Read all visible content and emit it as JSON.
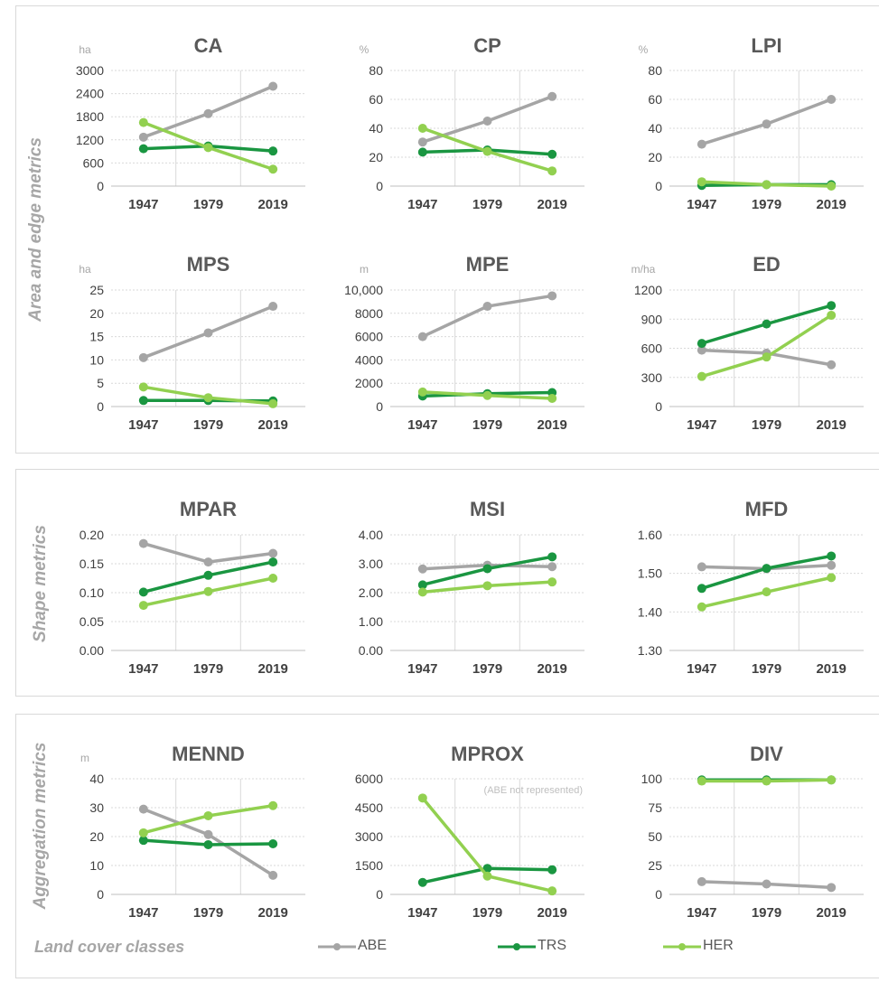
{
  "panels": [
    {
      "label": "Area and edge metrics"
    },
    {
      "label": "Shape metrics"
    },
    {
      "label": "Aggregation metrics"
    }
  ],
  "legend": {
    "title": "Land cover classes",
    "items": [
      {
        "name": "ABE",
        "color": "#a5a5a5"
      },
      {
        "name": "TRS",
        "color": "#1a9641"
      },
      {
        "name": "HER",
        "color": "#92d050"
      }
    ]
  },
  "chart_data": [
    {
      "type": "line",
      "title": "CA",
      "unit": "ha",
      "categories": [
        "1947",
        "1979",
        "2019"
      ],
      "ylim": [
        0,
        3000
      ],
      "yticks": [
        "0",
        "600",
        "1200",
        "1800",
        "2400",
        "3000"
      ],
      "series": [
        {
          "name": "ABE",
          "values": [
            1270,
            1880,
            2590
          ]
        },
        {
          "name": "TRS",
          "values": [
            970,
            1040,
            910
          ]
        },
        {
          "name": "HER",
          "values": [
            1650,
            1000,
            440
          ]
        }
      ]
    },
    {
      "type": "line",
      "title": "CP",
      "unit": "%",
      "categories": [
        "1947",
        "1979",
        "2019"
      ],
      "ylim": [
        0,
        80
      ],
      "yticks": [
        "0",
        "20",
        "40",
        "60",
        "80"
      ],
      "series": [
        {
          "name": "ABE",
          "values": [
            30.5,
            45,
            62
          ]
        },
        {
          "name": "TRS",
          "values": [
            23.5,
            25,
            22
          ]
        },
        {
          "name": "HER",
          "values": [
            40,
            24,
            10.5
          ]
        }
      ]
    },
    {
      "type": "line",
      "title": "LPI",
      "unit": "%",
      "categories": [
        "1947",
        "1979",
        "2019"
      ],
      "ylim": [
        0,
        80
      ],
      "yticks": [
        "0",
        "20",
        "40",
        "60",
        "80"
      ],
      "series": [
        {
          "name": "ABE",
          "values": [
            29,
            43,
            60
          ]
        },
        {
          "name": "TRS",
          "values": [
            0.5,
            1,
            1
          ]
        },
        {
          "name": "HER",
          "values": [
            3,
            1,
            0
          ]
        }
      ]
    },
    {
      "type": "line",
      "title": "MPS",
      "unit": "ha",
      "categories": [
        "1947",
        "1979",
        "2019"
      ],
      "ylim": [
        0,
        25
      ],
      "yticks": [
        "0",
        "5",
        "10",
        "15",
        "20",
        "25"
      ],
      "series": [
        {
          "name": "ABE",
          "values": [
            10.5,
            15.8,
            21.5
          ]
        },
        {
          "name": "TRS",
          "values": [
            1.3,
            1.3,
            1.2
          ]
        },
        {
          "name": "HER",
          "values": [
            4.2,
            1.9,
            0.6
          ]
        }
      ]
    },
    {
      "type": "line",
      "title": "MPE",
      "unit": "m",
      "categories": [
        "1947",
        "1979",
        "2019"
      ],
      "ylim": [
        0,
        10000
      ],
      "yticks": [
        "0",
        "2000",
        "4000",
        "6000",
        "8000",
        "10,000"
      ],
      "series": [
        {
          "name": "ABE",
          "values": [
            6000,
            8600,
            9500
          ]
        },
        {
          "name": "TRS",
          "values": [
            900,
            1100,
            1200
          ]
        },
        {
          "name": "HER",
          "values": [
            1250,
            950,
            700
          ]
        }
      ]
    },
    {
      "type": "line",
      "title": "ED",
      "unit": "m/ha",
      "categories": [
        "1947",
        "1979",
        "2019"
      ],
      "ylim": [
        0,
        1200
      ],
      "yticks": [
        "0",
        "300",
        "600",
        "900",
        "1200"
      ],
      "series": [
        {
          "name": "ABE",
          "values": [
            580,
            550,
            430
          ]
        },
        {
          "name": "TRS",
          "values": [
            650,
            850,
            1040
          ]
        },
        {
          "name": "HER",
          "values": [
            310,
            510,
            940
          ]
        }
      ]
    },
    {
      "type": "line",
      "title": "MPAR",
      "unit": "",
      "categories": [
        "1947",
        "1979",
        "2019"
      ],
      "ylim": [
        0,
        0.2
      ],
      "yticks": [
        "0.00",
        "0.05",
        "0.10",
        "0.15",
        "0.20"
      ],
      "series": [
        {
          "name": "ABE",
          "values": [
            0.185,
            0.153,
            0.168
          ]
        },
        {
          "name": "TRS",
          "values": [
            0.101,
            0.13,
            0.153
          ]
        },
        {
          "name": "HER",
          "values": [
            0.078,
            0.102,
            0.125
          ]
        }
      ]
    },
    {
      "type": "line",
      "title": "MSI",
      "unit": "",
      "categories": [
        "1947",
        "1979",
        "2019"
      ],
      "ylim": [
        0,
        4
      ],
      "yticks": [
        "0.00",
        "1.00",
        "2.00",
        "3.00",
        "4.00"
      ],
      "series": [
        {
          "name": "ABE",
          "values": [
            2.82,
            2.95,
            2.9
          ]
        },
        {
          "name": "TRS",
          "values": [
            2.27,
            2.83,
            3.24
          ]
        },
        {
          "name": "HER",
          "values": [
            2.02,
            2.24,
            2.37
          ]
        }
      ]
    },
    {
      "type": "line",
      "title": "MFD",
      "unit": "",
      "categories": [
        "1947",
        "1979",
        "2019"
      ],
      "ylim": [
        1.3,
        1.6
      ],
      "yticks": [
        "1.30",
        "1.40",
        "1.50",
        "1.60"
      ],
      "series": [
        {
          "name": "ABE",
          "values": [
            1.517,
            1.512,
            1.521
          ]
        },
        {
          "name": "TRS",
          "values": [
            1.461,
            1.513,
            1.545
          ]
        },
        {
          "name": "HER",
          "values": [
            1.413,
            1.452,
            1.489
          ]
        }
      ]
    },
    {
      "type": "line",
      "title": "MENND",
      "unit": "m",
      "categories": [
        "1947",
        "1979",
        "2019"
      ],
      "ylim": [
        0,
        40
      ],
      "yticks": [
        "0",
        "10",
        "20",
        "30",
        "40"
      ],
      "series": [
        {
          "name": "ABE",
          "values": [
            29.5,
            20.7,
            6.6
          ]
        },
        {
          "name": "TRS",
          "values": [
            18.7,
            17.2,
            17.5
          ]
        },
        {
          "name": "HER",
          "values": [
            21.3,
            27.2,
            30.7
          ]
        }
      ]
    },
    {
      "type": "line",
      "title": "MPROX",
      "unit": "",
      "note": "(ABE not represented)",
      "categories": [
        "1947",
        "1979",
        "2019"
      ],
      "ylim": [
        0,
        6000
      ],
      "yticks": [
        "0",
        "1500",
        "3000",
        "4500",
        "6000"
      ],
      "series": [
        {
          "name": "TRS",
          "values": [
            620,
            1350,
            1280
          ]
        },
        {
          "name": "HER",
          "values": [
            5000,
            950,
            180
          ]
        }
      ]
    },
    {
      "type": "line",
      "title": "DIV",
      "unit": "",
      "categories": [
        "1947",
        "1979",
        "2019"
      ],
      "ylim": [
        0,
        100
      ],
      "yticks": [
        "0",
        "25",
        "50",
        "75",
        "100"
      ],
      "series": [
        {
          "name": "ABE",
          "values": [
            11,
            9,
            6
          ]
        },
        {
          "name": "TRS",
          "values": [
            99,
            99,
            99
          ]
        },
        {
          "name": "HER",
          "values": [
            98,
            98,
            99
          ]
        }
      ]
    }
  ]
}
